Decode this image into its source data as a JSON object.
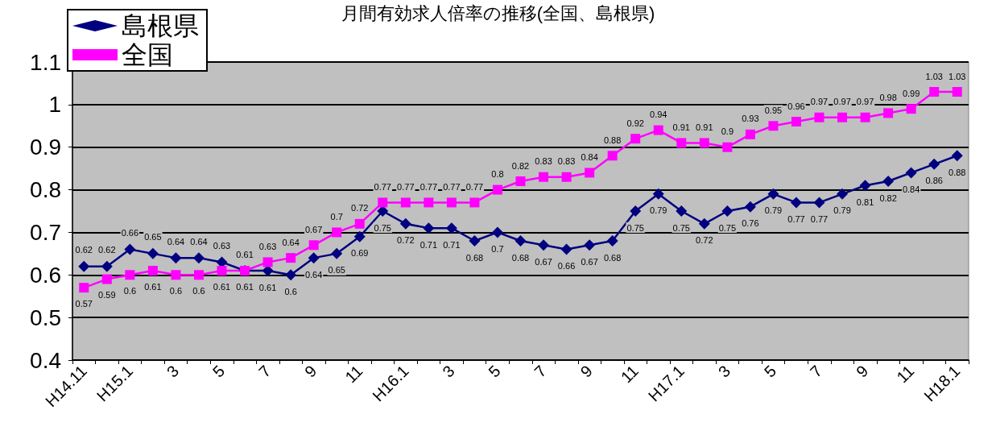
{
  "chart_data": {
    "type": "line",
    "title": "月間有効求人倍率の推移(全国、島根県)",
    "categories": [
      "H14.11",
      null,
      "H15.1",
      null,
      "3",
      null,
      "5",
      null,
      "7",
      null,
      "9",
      null,
      "11",
      null,
      "H16.1",
      null,
      "3",
      null,
      "5",
      null,
      "7",
      null,
      "9",
      null,
      "11",
      null,
      "H17.1",
      null,
      "3",
      null,
      "5",
      null,
      "7",
      null,
      "9",
      null,
      "11",
      null,
      "H18.1"
    ],
    "series": [
      {
        "name": "島根県",
        "color": "#000080",
        "marker": "diamond",
        "values": [
          0.62,
          0.62,
          0.66,
          0.65,
          0.64,
          0.64,
          0.63,
          0.61,
          0.61,
          0.6,
          0.64,
          0.65,
          0.69,
          0.75,
          0.72,
          0.71,
          0.71,
          0.68,
          0.7,
          0.68,
          0.67,
          0.66,
          0.67,
          0.68,
          0.75,
          0.79,
          0.75,
          0.72,
          0.75,
          0.76,
          0.79,
          0.77,
          0.77,
          0.79,
          0.81,
          0.82,
          0.84,
          0.86,
          0.88
        ]
      },
      {
        "name": "全国",
        "color": "#ff00ff",
        "marker": "square",
        "values": [
          0.57,
          0.59,
          0.6,
          0.61,
          0.6,
          0.6,
          0.61,
          0.61,
          0.63,
          0.64,
          0.67,
          0.7,
          0.72,
          0.77,
          0.77,
          0.77,
          0.77,
          0.77,
          0.8,
          0.82,
          0.83,
          0.83,
          0.84,
          0.88,
          0.92,
          0.94,
          0.91,
          0.91,
          0.9,
          0.93,
          0.95,
          0.96,
          0.97,
          0.97,
          0.97,
          0.98,
          0.99,
          1.03,
          1.03
        ]
      }
    ],
    "ylim": [
      0.4,
      1.1
    ],
    "yticks": [
      0.4,
      0.5,
      0.6,
      0.7,
      0.8,
      0.9,
      1,
      1.1
    ],
    "grid": "y",
    "legend": "top left",
    "data_labels": true,
    "line_style": "solid"
  }
}
